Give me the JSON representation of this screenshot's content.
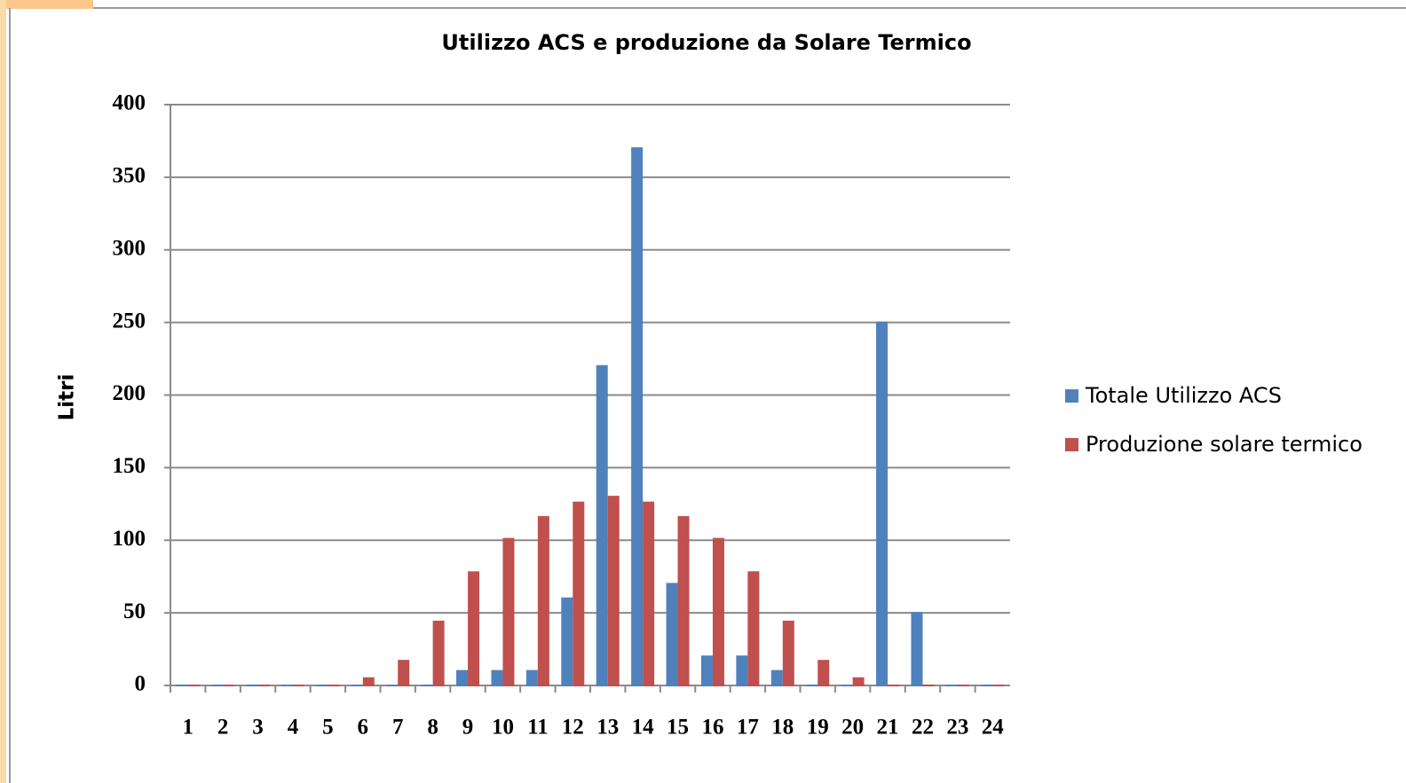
{
  "chart_data": {
    "type": "bar",
    "title": "Utilizzo ACS e produzione da Solare Termico",
    "y_label": "Litri",
    "categories": [
      "1",
      "2",
      "3",
      "4",
      "5",
      "6",
      "7",
      "8",
      "9",
      "10",
      "11",
      "12",
      "13",
      "14",
      "15",
      "16",
      "17",
      "18",
      "19",
      "20",
      "21",
      "22",
      "23",
      "24"
    ],
    "series": [
      {
        "name": "Totale Utilizzo ACS",
        "color": "#4f81bd",
        "values": [
          0,
          0,
          0,
          0,
          0,
          0,
          0,
          0,
          10,
          10,
          10,
          60,
          220,
          370,
          70,
          20,
          20,
          10,
          0,
          0,
          250,
          50,
          0,
          0
        ]
      },
      {
        "name": "Produzione solare termico",
        "color": "#c0504d",
        "values": [
          0,
          0,
          0,
          0,
          0,
          5,
          17,
          44,
          78,
          101,
          116,
          126,
          130,
          126,
          116,
          101,
          78,
          44,
          17,
          5,
          0,
          0,
          0,
          0
        ]
      }
    ],
    "ylim": [
      0,
      400
    ],
    "yticks": [
      0,
      50,
      100,
      150,
      200,
      250,
      300,
      350,
      400
    ],
    "grid": true,
    "legend": "right"
  }
}
